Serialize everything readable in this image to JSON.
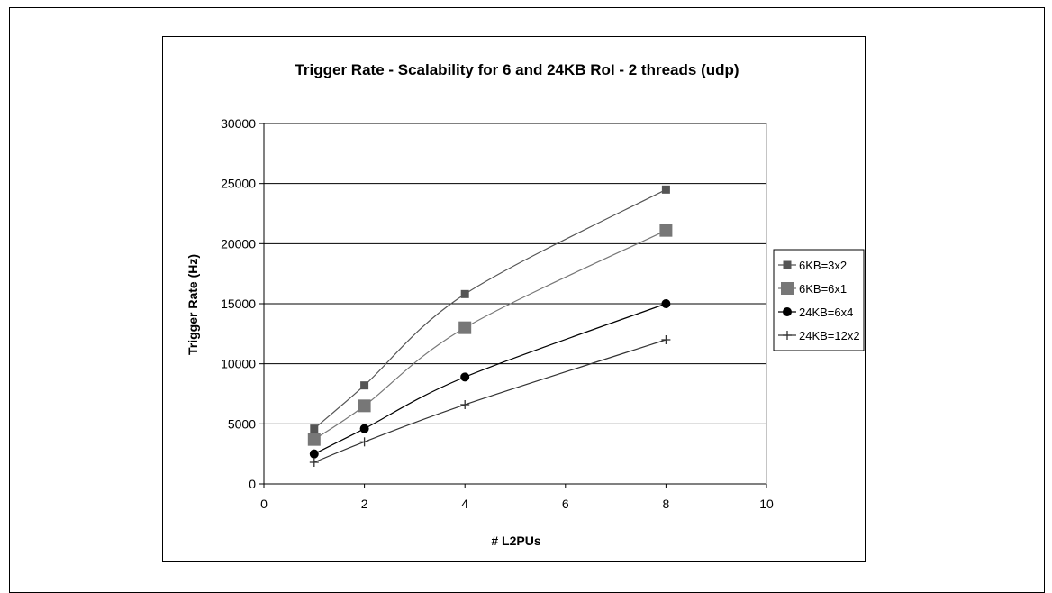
{
  "chart_data": {
    "type": "line",
    "title": "Trigger Rate - Scalability for 6 and 24KB RoI - 2 threads (udp)",
    "xlabel": "# L2PUs",
    "ylabel": "Trigger Rate (Hz)",
    "xlim": [
      0,
      10
    ],
    "ylim": [
      0,
      30000
    ],
    "xticks": [
      0,
      2,
      4,
      6,
      8,
      10
    ],
    "yticks": [
      0,
      5000,
      10000,
      15000,
      20000,
      25000,
      30000
    ],
    "grid": "horizontal",
    "legend_position": "right",
    "series": [
      {
        "name": "6KB=3x2",
        "x": [
          1,
          2,
          4,
          8
        ],
        "y": [
          4600,
          8200,
          15800,
          24500
        ],
        "marker": "small-square",
        "color": "#555555"
      },
      {
        "name": "6KB=6x1",
        "x": [
          1,
          2,
          4,
          8
        ],
        "y": [
          3700,
          6500,
          13000,
          21100
        ],
        "marker": "large-square",
        "color": "#777777"
      },
      {
        "name": "24KB=6x4",
        "x": [
          1,
          2,
          4,
          8
        ],
        "y": [
          2500,
          4600,
          8900,
          15000
        ],
        "marker": "circle",
        "color": "#000000"
      },
      {
        "name": "24KB=12x2",
        "x": [
          1,
          2,
          4,
          8
        ],
        "y": [
          1800,
          3500,
          6600,
          12000
        ],
        "marker": "plus",
        "color": "#333333"
      }
    ]
  }
}
